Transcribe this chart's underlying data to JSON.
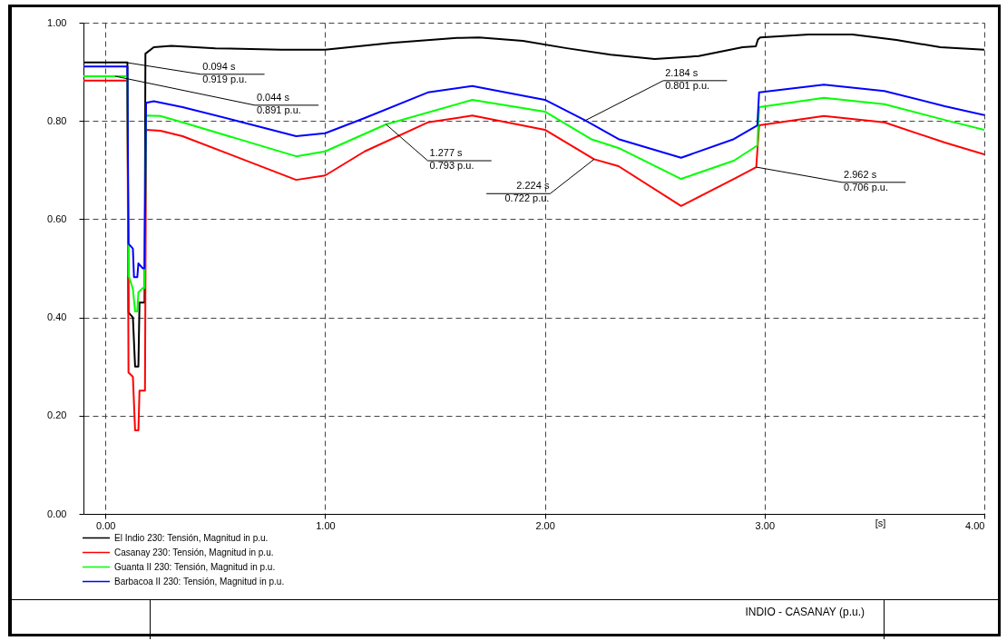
{
  "chart_data": {
    "type": "line",
    "title": "INDIO - CASANAY (p.u.)",
    "xlabel": "[s]",
    "xlim": [
      -0.1,
      4.0
    ],
    "ylim": [
      0,
      1.0
    ],
    "xticks": [
      {
        "value": 0,
        "label": "0.00"
      },
      {
        "value": 1,
        "label": "1.00"
      },
      {
        "value": 2,
        "label": "2.00"
      },
      {
        "value": 3,
        "label": "3.00"
      },
      {
        "value": 4,
        "label": "4.00"
      }
    ],
    "yticks": [
      {
        "value": 0,
        "label": "0.00"
      },
      {
        "value": 0.2,
        "label": "0.20"
      },
      {
        "value": 0.4,
        "label": "0.40"
      },
      {
        "value": 0.6,
        "label": "0.60"
      },
      {
        "value": 0.8,
        "label": "0.80"
      },
      {
        "value": 1.0,
        "label": "1.00"
      }
    ],
    "grid": true,
    "legend": "bottom left",
    "marker": "none",
    "line_style": "solid",
    "series": [
      {
        "name": "El Indio 230: Tensión, Magnitud in p.u.",
        "color": "#000000",
        "x": [
          -0.1,
          0.094,
          0.1,
          0.105,
          0.125,
          0.135,
          0.15,
          0.155,
          0.178,
          0.182,
          0.22,
          0.3,
          0.5,
          0.8,
          1.0,
          1.3,
          1.6,
          1.7,
          1.9,
          2.1,
          2.3,
          2.5,
          2.7,
          2.9,
          2.96,
          2.97,
          2.98,
          3.2,
          3.4,
          3.6,
          3.8,
          4.0
        ],
        "values": [
          0.919,
          0.919,
          0.919,
          0.41,
          0.4,
          0.3,
          0.3,
          0.43,
          0.43,
          0.937,
          0.95,
          0.953,
          0.948,
          0.945,
          0.945,
          0.959,
          0.969,
          0.97,
          0.963,
          0.948,
          0.935,
          0.926,
          0.932,
          0.95,
          0.952,
          0.966,
          0.97,
          0.976,
          0.976,
          0.965,
          0.95,
          0.945
        ]
      },
      {
        "name": "Casanay 230: Tensión, Magnitud in p.u.",
        "color": "#ff0000",
        "x": [
          -0.1,
          0.1,
          0.105,
          0.125,
          0.135,
          0.15,
          0.155,
          0.175,
          0.18,
          0.185,
          0.25,
          0.351,
          0.868,
          1.0,
          1.18,
          1.467,
          1.67,
          2.0,
          2.224,
          2.335,
          2.62,
          2.86,
          2.962,
          2.975,
          3.27,
          3.545,
          3.82,
          4.0
        ],
        "values": [
          0.882,
          0.882,
          0.288,
          0.279,
          0.17,
          0.17,
          0.251,
          0.251,
          0.251,
          0.782,
          0.78,
          0.769,
          0.68,
          0.689,
          0.738,
          0.797,
          0.811,
          0.782,
          0.722,
          0.708,
          0.627,
          0.682,
          0.706,
          0.791,
          0.81,
          0.797,
          0.756,
          0.732
        ]
      },
      {
        "name": "Guanta II 230: Tensión, Magnitud in p.u.",
        "color": "#00ff00",
        "x": [
          -0.1,
          0.1,
          0.105,
          0.125,
          0.135,
          0.145,
          0.15,
          0.17,
          0.178,
          0.185,
          0.25,
          0.351,
          0.868,
          1.0,
          1.277,
          1.67,
          2.0,
          2.21,
          2.335,
          2.62,
          2.86,
          2.967,
          2.975,
          3.27,
          3.545,
          3.82,
          4.0
        ],
        "values": [
          0.891,
          0.891,
          0.486,
          0.458,
          0.412,
          0.412,
          0.451,
          0.46,
          0.46,
          0.811,
          0.81,
          0.797,
          0.728,
          0.738,
          0.793,
          0.843,
          0.819,
          0.763,
          0.745,
          0.682,
          0.719,
          0.75,
          0.828,
          0.847,
          0.834,
          0.802,
          0.782
        ]
      },
      {
        "name": "Barbacoa II 230: Tensión, Magnitud in p.u.",
        "color": "#0000ff",
        "x": [
          -0.1,
          0.1,
          0.105,
          0.125,
          0.13,
          0.145,
          0.15,
          0.17,
          0.178,
          0.185,
          0.22,
          0.351,
          0.6,
          0.868,
          1.0,
          1.18,
          1.467,
          1.67,
          2.0,
          2.184,
          2.335,
          2.62,
          2.86,
          2.967,
          2.975,
          3.27,
          3.545,
          3.82,
          4.0
        ],
        "values": [
          0.911,
          0.911,
          0.55,
          0.54,
          0.482,
          0.482,
          0.51,
          0.5,
          0.5,
          0.837,
          0.84,
          0.828,
          0.8,
          0.769,
          0.775,
          0.806,
          0.858,
          0.871,
          0.843,
          0.801,
          0.763,
          0.725,
          0.763,
          0.791,
          0.858,
          0.874,
          0.861,
          0.83,
          0.812
        ]
      }
    ],
    "annotations": [
      {
        "text": "0.094 s\n0.919 p.u.",
        "x": 0.094,
        "y": 0.919
      },
      {
        "text": "0.044 s\n0.891 p.u.",
        "x": 0.044,
        "y": 0.891
      },
      {
        "text": "1.277 s\n0.793 p.u.",
        "x": 1.277,
        "y": 0.793
      },
      {
        "text": "2.224 s\n0.722 p.u.",
        "x": 2.224,
        "y": 0.722
      },
      {
        "text": "2.184 s\n0.801 p.u.",
        "x": 2.184,
        "y": 0.801
      },
      {
        "text": "2.962 s\n0.706 p.u.",
        "x": 2.962,
        "y": 0.706
      }
    ]
  }
}
